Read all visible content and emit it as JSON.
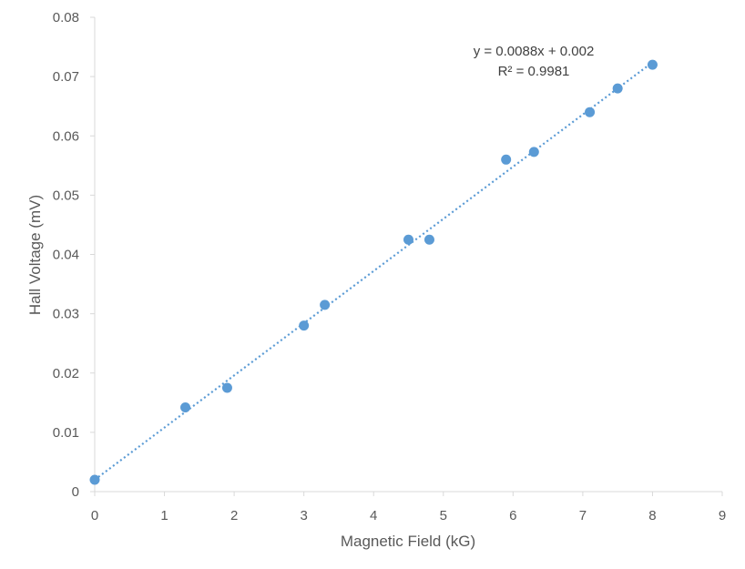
{
  "chart_data": {
    "type": "scatter",
    "title": "",
    "xlabel": "Magnetic Field (kG)",
    "ylabel": "Hall Voltage (mV)",
    "xlim": [
      0,
      9
    ],
    "ylim": [
      0,
      0.08
    ],
    "x_ticks": [
      "0",
      "1",
      "2",
      "3",
      "4",
      "5",
      "6",
      "7",
      "8",
      "9"
    ],
    "y_ticks": [
      "0",
      "0.01",
      "0.02",
      "0.03",
      "0.04",
      "0.05",
      "0.06",
      "0.07",
      "0.08"
    ],
    "grid": false,
    "legend": "none",
    "series": [
      {
        "color": "#5B9BD5",
        "points": [
          {
            "x": 0,
            "y": 0.002
          },
          {
            "x": 1.3,
            "y": 0.0142
          },
          {
            "x": 1.9,
            "y": 0.0175
          },
          {
            "x": 3.0,
            "y": 0.028
          },
          {
            "x": 3.3,
            "y": 0.0315
          },
          {
            "x": 4.5,
            "y": 0.0425
          },
          {
            "x": 4.8,
            "y": 0.0425
          },
          {
            "x": 5.9,
            "y": 0.056
          },
          {
            "x": 6.3,
            "y": 0.0573
          },
          {
            "x": 7.1,
            "y": 0.064
          },
          {
            "x": 7.5,
            "y": 0.068
          },
          {
            "x": 8.0,
            "y": 0.072
          }
        ]
      }
    ],
    "trendline": {
      "type": "linear",
      "slope": 0.0088,
      "intercept": 0.002,
      "x_range": [
        0,
        8
      ],
      "style": "dotted",
      "color": "#5B9BD5",
      "equation_label": "y = 0.0088x + 0.002",
      "r2_label": "R² = 0.9981"
    }
  }
}
